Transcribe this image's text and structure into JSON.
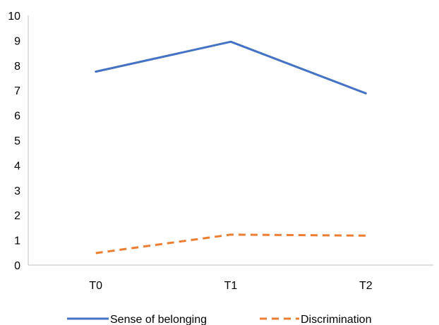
{
  "chart_data": {
    "type": "line",
    "categories": [
      "T0",
      "T1",
      "T2"
    ],
    "series": [
      {
        "name": "Sense of belonging",
        "values": [
          7.75,
          8.95,
          6.88
        ],
        "color": "#4472C4",
        "dash": "solid"
      },
      {
        "name": "Discrimination",
        "values": [
          0.48,
          1.22,
          1.18
        ],
        "color": "#ED7D31",
        "dash": "dashed"
      }
    ],
    "ylim": [
      0,
      10
    ],
    "yticks": [
      "0",
      "1",
      "2",
      "3",
      "4",
      "5",
      "6",
      "7",
      "8",
      "9",
      "10"
    ],
    "grid": false,
    "legend_position": "bottom"
  }
}
